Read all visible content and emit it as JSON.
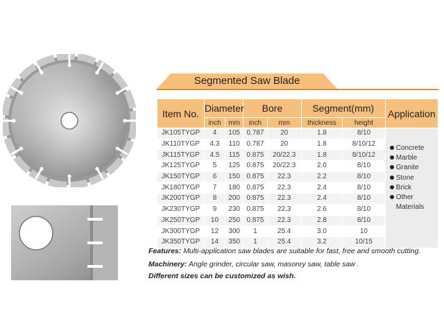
{
  "title": "Segmented Saw Blade",
  "headers": {
    "item": "Item No.",
    "diameter": "Diameter",
    "bore": "Bore",
    "segment": "Segment(mm)",
    "application": "Application",
    "inch": "inch",
    "mm": "mm",
    "bore_inch": "inch",
    "bore_mm": "mm",
    "thickness": "thickness",
    "height": "height"
  },
  "rows": [
    [
      "JK105TYGP",
      "4",
      "105",
      "0.787",
      "20",
      "1.8",
      "8/10"
    ],
    [
      "JK110TYGP",
      "4.3",
      "110",
      "0.787",
      "20",
      "1.8",
      "8/10/12"
    ],
    [
      "JK115TYGP",
      "4.5",
      "115",
      "0.875",
      "20/22.3",
      "1.8",
      "8/10/12"
    ],
    [
      "JK125TYGP",
      "5",
      "125",
      "0.875",
      "20/22.3",
      "2.0",
      "8/10"
    ],
    [
      "JK150TYGP",
      "6",
      "150",
      "0.875",
      "22.3",
      "2.2",
      "8/10"
    ],
    [
      "JK180TYGP",
      "7",
      "180",
      "0.875",
      "22.3",
      "2.4",
      "8/10"
    ],
    [
      "JK200TYGP",
      "8",
      "200",
      "0.875",
      "22.3",
      "2.4",
      "8/10"
    ],
    [
      "JK230TYGP",
      "9",
      "230",
      "0.875",
      "22.3",
      "2.6",
      "8/10"
    ],
    [
      "JK250TYGP",
      "10",
      "250",
      "0.875",
      "22.3",
      "2.8",
      "8/10"
    ],
    [
      "JK300TYGP",
      "12",
      "300",
      "1",
      "25.4",
      "3.0",
      "10"
    ],
    [
      "JK350TYGP",
      "14",
      "350",
      "1",
      "25.4",
      "3.2",
      "10/15"
    ]
  ],
  "applications": [
    "Concrete",
    "Marble",
    "Granite",
    "Stone",
    "Brick",
    "Other",
    "Materials"
  ],
  "notes": {
    "features_label": "Features:",
    "features_text": "Multi-application saw blades are suitable for fast, free and smooth cutting.",
    "machinery_label": "Machinery:",
    "machinery_text": "Angle grinder, circular saw, masonry saw, table saw .",
    "custom_text": "Different sizes can be customized as wish."
  },
  "colors": {
    "accent": "#e68a2e",
    "header_fill": "#f6bf7c"
  }
}
